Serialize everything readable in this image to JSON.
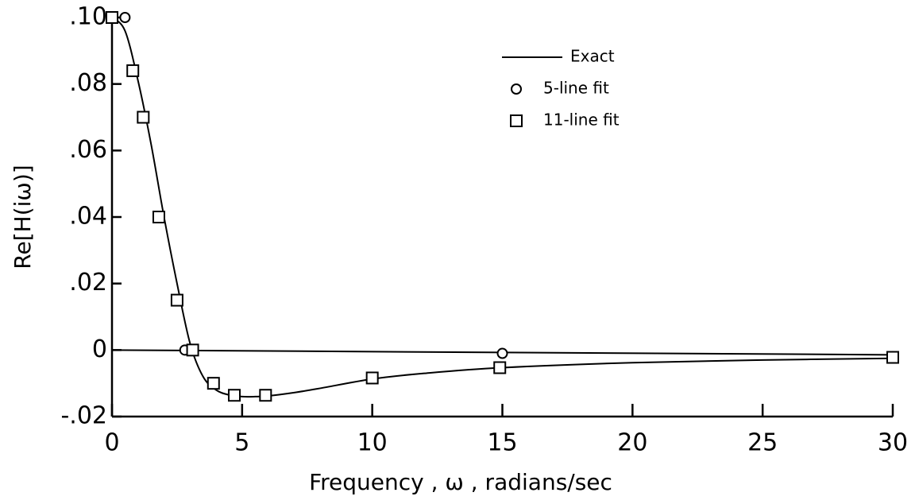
{
  "chart_data": {
    "type": "line",
    "x_label": "Frequency , ω , radians/sec",
    "y_label": "Re[H(iω)]",
    "xlim": [
      0,
      30
    ],
    "ylim": [
      -0.02,
      0.1
    ],
    "xticks": [
      0,
      5,
      10,
      15,
      20,
      25,
      30
    ],
    "yticks": [
      {
        "value": 0.1,
        "label": ".10"
      },
      {
        "value": 0.08,
        "label": ".08"
      },
      {
        "value": 0.06,
        "label": ".06"
      },
      {
        "value": 0.04,
        "label": ".04"
      },
      {
        "value": 0.02,
        "label": ".02"
      },
      0,
      {
        "value": -0.02,
        "label": "-.02"
      }
    ],
    "grid": false,
    "legend": "upper right",
    "series": [
      {
        "name": "Exact",
        "color": "#000000",
        "marker": "none",
        "x": [
          0,
          0.5,
          1,
          1.5,
          2,
          2.5,
          3,
          3.5,
          4,
          4.5,
          5,
          5.5,
          6,
          7,
          8,
          10,
          12,
          15,
          20,
          25,
          30
        ],
        "values": [
          0.1,
          0.096,
          0.081,
          0.062,
          0.04,
          0.02,
          0.002,
          -0.008,
          -0.012,
          -0.0135,
          -0.014,
          -0.014,
          -0.0138,
          -0.0128,
          -0.0115,
          -0.0087,
          -0.007,
          -0.0053,
          -0.0038,
          -0.003,
          -0.0025
        ]
      },
      {
        "name": "5-line fit",
        "color": "#000000",
        "marker": "circle",
        "x": [
          0,
          0.5,
          2.8,
          15,
          30
        ],
        "values": [
          0.1,
          0.1,
          0,
          -0.001,
          -0.002
        ]
      },
      {
        "name": "11-line fit",
        "color": "#000000",
        "marker": "square",
        "x": [
          0,
          0.8,
          1.2,
          1.8,
          2.5,
          3.1,
          3.9,
          4.7,
          5.9,
          10,
          14.9,
          30
        ],
        "values": [
          0.1,
          0.084,
          0.07,
          0.04,
          0.015,
          0,
          -0.01,
          -0.0136,
          -0.0136,
          -0.0084,
          -0.0053,
          -0.0022
        ]
      }
    ]
  }
}
